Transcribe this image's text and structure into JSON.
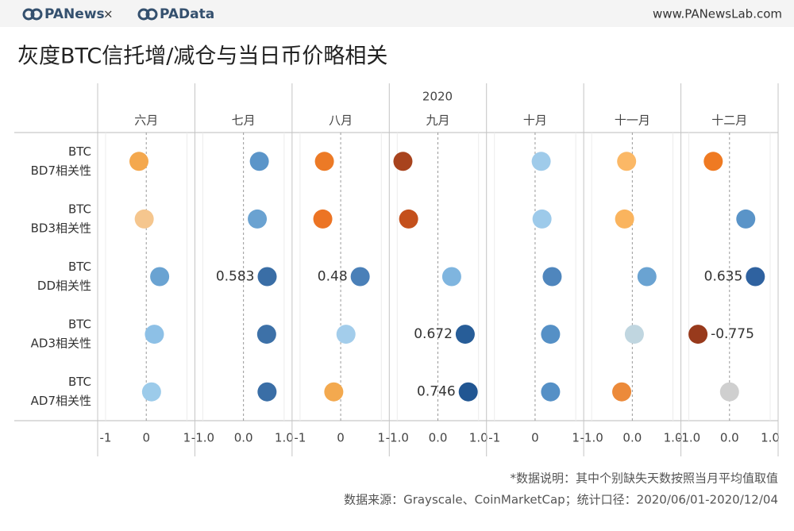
{
  "header": {
    "brand_left": "PANews",
    "separator": "×",
    "brand_right": "PAData",
    "website": "www.PANewsLab.com"
  },
  "chart_data": {
    "type": "dot-matrix",
    "title": "灰度BTC信托增/减仓与当日币价略相关",
    "column_group": "2020",
    "categories": [
      "六月",
      "七月",
      "八月",
      "九月",
      "十月",
      "十一月",
      "十二月"
    ],
    "xaxes": [
      {
        "xlim": [
          -1,
          1
        ],
        "xticks": [
          -1,
          0,
          1
        ]
      },
      {
        "xlim": [
          -1,
          1
        ],
        "xticks": [
          {
            "value": -1,
            "label": "-1.0"
          },
          {
            "value": 0,
            "label": "0.0"
          },
          {
            "value": 1,
            "label": "1.0"
          }
        ]
      },
      {
        "xlim": [
          -1,
          1
        ],
        "xticks": [
          -1,
          0,
          1
        ]
      },
      {
        "xlim": [
          -1,
          1
        ],
        "xticks": [
          {
            "value": -1,
            "label": "-1.0"
          },
          {
            "value": 0,
            "label": "0.0"
          },
          {
            "value": 1,
            "label": "1.0"
          }
        ]
      },
      {
        "xlim": [
          -1,
          1
        ],
        "xticks": [
          -1,
          0,
          1
        ]
      },
      {
        "xlim": [
          -1,
          1
        ],
        "xticks": [
          {
            "value": -1,
            "label": "-1.0"
          },
          {
            "value": 0,
            "label": "0.0"
          },
          {
            "value": 1,
            "label": "1.0"
          }
        ]
      },
      {
        "xlim": [
          -1,
          1
        ],
        "xticks": [
          {
            "value": -1,
            "label": "-1.0"
          },
          {
            "value": 0,
            "label": "0.0"
          },
          {
            "value": 1,
            "label": "1.0"
          }
        ]
      }
    ],
    "series": [
      {
        "name_lines": [
          "BTC",
          "BD7相关性"
        ],
        "values": [
          -0.18,
          0.39,
          -0.4,
          -0.86,
          0.15,
          -0.14,
          -0.4
        ],
        "colors": [
          "#f4a84e",
          "#5b95c9",
          "#ec7a26",
          "#a8431d",
          "#9fcbea",
          "#fbb866",
          "#ef7a22"
        ],
        "show_value_label": [
          false,
          false,
          false,
          false,
          false,
          false,
          false
        ]
      },
      {
        "name_lines": [
          "BTC",
          "BD3相关性"
        ],
        "values": [
          -0.05,
          0.34,
          -0.44,
          -0.72,
          0.17,
          -0.19,
          0.4
        ],
        "colors": [
          "#f5c68e",
          "#6aa2d1",
          "#ec7424",
          "#c4501c",
          "#9dcaea",
          "#fab45e",
          "#5a94c8"
        ],
        "show_value_label": [
          false,
          false,
          false,
          false,
          false,
          false,
          false
        ]
      },
      {
        "name_lines": [
          "BTC",
          "DD相关性"
        ],
        "values": [
          0.33,
          0.583,
          0.48,
          0.34,
          0.42,
          0.36,
          0.635
        ],
        "colors": [
          "#6aa3d2",
          "#3a6ea6",
          "#4a80b8",
          "#7fb5df",
          "#4f86bd",
          "#6aa3d2",
          "#2f62a0"
        ],
        "show_value_label": [
          false,
          true,
          true,
          false,
          false,
          false,
          true
        ]
      },
      {
        "name_lines": [
          "BTC",
          "AD3相关性"
        ],
        "values": [
          0.2,
          0.57,
          0.13,
          0.672,
          0.38,
          0.05,
          -0.775
        ],
        "colors": [
          "#8dc0e6",
          "#3d71a8",
          "#a3cdeb",
          "#275d98",
          "#5590c6",
          "#c0d6e0",
          "#983a1c"
        ],
        "show_value_label": [
          false,
          false,
          false,
          true,
          false,
          false,
          true
        ]
      },
      {
        "name_lines": [
          "BTC",
          "AD7相关性"
        ],
        "values": [
          0.13,
          0.58,
          -0.17,
          0.746,
          0.38,
          -0.26,
          0.0
        ],
        "colors": [
          "#9ccbea",
          "#3a6ea6",
          "#f3a94f",
          "#215692",
          "#5590c6",
          "#ec8a3a",
          "#cfcfcf"
        ],
        "show_value_label": [
          false,
          false,
          false,
          true,
          false,
          false,
          false
        ]
      }
    ],
    "notes": [
      "*数据说明：其中个别缺失天数按照当月平均值取值",
      "数据来源：Grayscale、CoinMarketCap；统计口径：2020/06/01-2020/12/04"
    ]
  }
}
